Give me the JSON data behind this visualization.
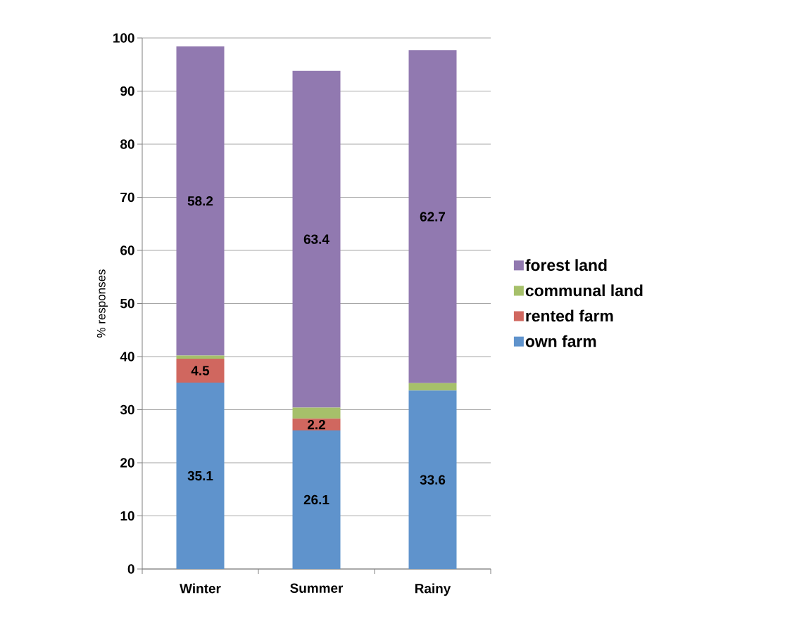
{
  "chart_data": {
    "type": "bar",
    "stacked": true,
    "ylabel": "% responses",
    "categories": [
      "Winter",
      "Summer",
      "Rainy"
    ],
    "series": [
      {
        "name": "own farm",
        "color": "#5f93cc",
        "values": [
          35.1,
          26.1,
          33.6
        ],
        "value_labels": [
          "35.1",
          "26.1",
          "33.6"
        ]
      },
      {
        "name": "rented farm",
        "color": "#d0675f",
        "values": [
          4.5,
          2.2,
          0
        ],
        "value_labels": [
          "4.5",
          "2.2",
          null
        ]
      },
      {
        "name": "communal land",
        "color": "#a6c06a",
        "values": [
          0.6,
          2.1,
          1.4
        ],
        "value_labels": [
          null,
          null,
          null
        ]
      },
      {
        "name": "forest land",
        "color": "#9179b0",
        "values": [
          58.2,
          63.4,
          62.7
        ],
        "value_labels": [
          "58.2",
          "63.4",
          "62.7"
        ]
      }
    ],
    "ylim": [
      0,
      100
    ],
    "yticks": [
      0,
      10,
      20,
      30,
      40,
      50,
      60,
      70,
      80,
      90,
      100
    ],
    "grid": "y",
    "legend": "right"
  }
}
